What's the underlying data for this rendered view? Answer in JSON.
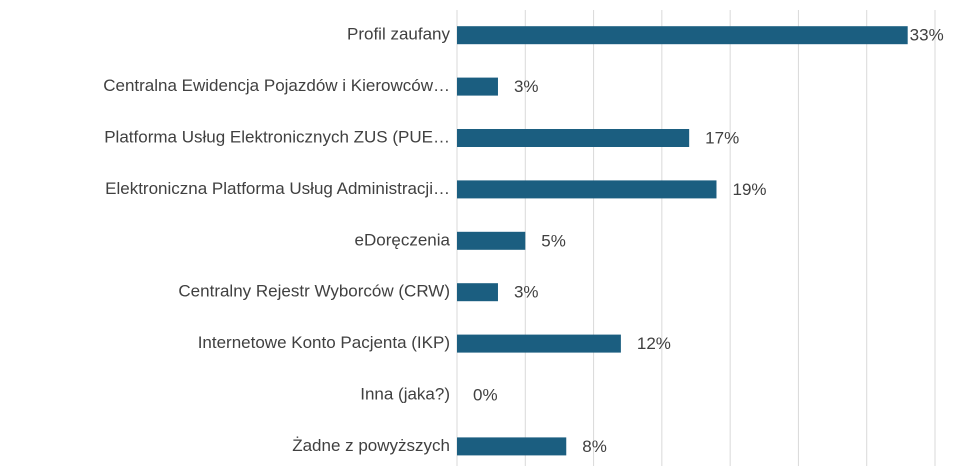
{
  "chart_data": {
    "type": "bar",
    "orientation": "horizontal",
    "categories": [
      "Profil zaufany",
      "Centralna Ewidencja Pojazdów i Kierowców…",
      "Platforma Usług Elektronicznych ZUS (PUE…",
      "Elektroniczna Platforma Usług Administracji…",
      "eDoręczenia",
      "Centralny Rejestr Wyborców (CRW)",
      "Internetowe Konto Pacjenta (IKP)",
      "Inna (jaka?)",
      "Żadne z powyższych"
    ],
    "values": [
      33,
      3,
      17,
      19,
      5,
      3,
      12,
      0,
      8
    ],
    "value_labels": [
      "33%",
      "3%",
      "17%",
      "19%",
      "5%",
      "3%",
      "12%",
      "0%",
      "8%"
    ],
    "color": "#1b5e80",
    "xlim": [
      0,
      35
    ],
    "xticks": [
      0,
      5,
      10,
      15,
      20,
      25,
      30,
      35
    ],
    "grid": true
  }
}
